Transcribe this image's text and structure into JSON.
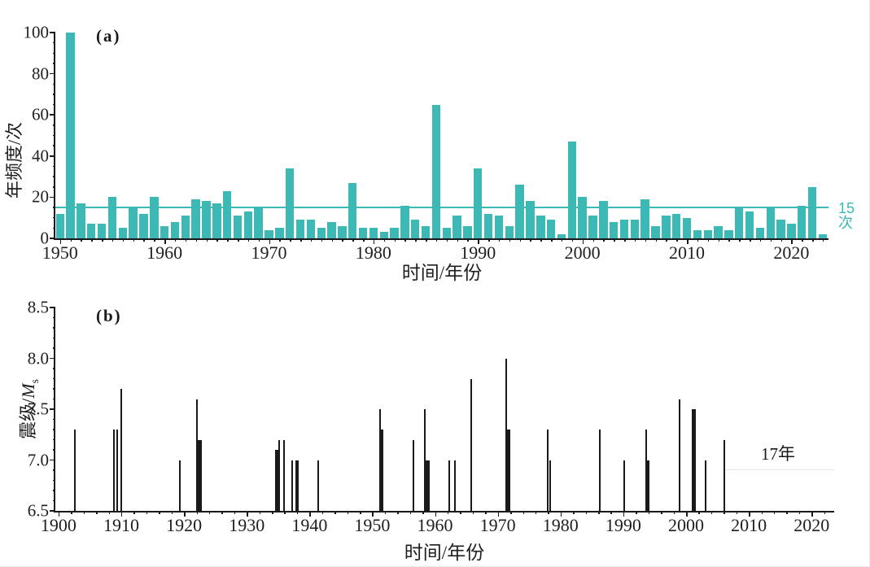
{
  "figure": {
    "background": "#ffffff",
    "border_color": "#e9e9e9",
    "axis_color": "#1a1a1a"
  },
  "chart_data": [
    {
      "type": "bar",
      "panel": "a",
      "title": "(a)",
      "xlabel": "时间/年份",
      "ylabel": "年频度/次",
      "ylim": [
        0,
        100
      ],
      "yticks": [
        0,
        20,
        40,
        60,
        80,
        100
      ],
      "ytick_labels": [
        "0",
        "20",
        "40",
        "60",
        "80",
        "100"
      ],
      "ytick_minor_step": 5,
      "xlim": [
        1949.55,
        2023.55
      ],
      "xticks": [
        1950,
        1960,
        1970,
        1980,
        1990,
        2000,
        2010,
        2020
      ],
      "xtick_labels": [
        "1950",
        "1960",
        "1970",
        "1980",
        "1990",
        "2000",
        "2010",
        "2020"
      ],
      "xtick_minor_step": 1,
      "grid": false,
      "legend": "none",
      "bar_color": "#3cb9b5",
      "threshold": {
        "value": 15,
        "label": "15次",
        "color": "#3cb9b5"
      },
      "year_start": 1950,
      "categories": [
        1950,
        1951,
        1952,
        1953,
        1954,
        1955,
        1956,
        1957,
        1958,
        1959,
        1960,
        1961,
        1962,
        1963,
        1964,
        1965,
        1966,
        1967,
        1968,
        1969,
        1970,
        1971,
        1972,
        1973,
        1974,
        1975,
        1976,
        1977,
        1978,
        1979,
        1980,
        1981,
        1982,
        1983,
        1984,
        1985,
        1986,
        1987,
        1988,
        1989,
        1990,
        1991,
        1992,
        1993,
        1994,
        1995,
        1996,
        1997,
        1998,
        1999,
        2000,
        2001,
        2002,
        2003,
        2004,
        2005,
        2006,
        2007,
        2008,
        2009,
        2010,
        2011,
        2012,
        2013,
        2014,
        2015,
        2016,
        2017,
        2018,
        2019,
        2020,
        2021,
        2022,
        2023
      ],
      "values": [
        12,
        100,
        17,
        7,
        7,
        20,
        5,
        15,
        12,
        20,
        6,
        8,
        11,
        19,
        18,
        17,
        23,
        11,
        13,
        15,
        4,
        5,
        34,
        9,
        9,
        5,
        8,
        6,
        27,
        5,
        5,
        3,
        5,
        16,
        9,
        6,
        65,
        5,
        11,
        6,
        34,
        12,
        11,
        6,
        26,
        18,
        11,
        9,
        2,
        47,
        20,
        11,
        18,
        8,
        9,
        9,
        19,
        6,
        11,
        12,
        10,
        4,
        4,
        6,
        4,
        15,
        13,
        5,
        15,
        9,
        7,
        16,
        25,
        2
      ]
    },
    {
      "type": "stem",
      "panel": "b",
      "title": "(b)",
      "xlabel": "时间/年份",
      "ylabel": "震级/Ms",
      "ylabel_prefix": "震级/",
      "ylabel_symbol": "M",
      "ylabel_subscript": "s",
      "ylim": [
        6.5,
        8.5
      ],
      "yticks": [
        6.5,
        7.0,
        7.5,
        8.0,
        8.5
      ],
      "ytick_labels": [
        "6.5",
        "7.0",
        "7.5",
        "8.0",
        "8.5"
      ],
      "ytick_minor_step": 0.1,
      "xlim": [
        1899.5,
        2023.6
      ],
      "xticks": [
        1900,
        1910,
        1920,
        1930,
        1940,
        1950,
        1960,
        1970,
        1980,
        1990,
        2000,
        2010,
        2020
      ],
      "xtick_labels": [
        "1900",
        "1910",
        "1920",
        "1930",
        "1940",
        "1950",
        "1960",
        "1970",
        "1980",
        "1990",
        "2000",
        "2010",
        "2020"
      ],
      "xtick_minor_step": 2,
      "grid": false,
      "legend": "none",
      "stem_color": "#1a1a1a",
      "baseline": 6.5,
      "events": [
        {
          "year": 1902.6,
          "mag": 7.3
        },
        {
          "year": 1908.8,
          "mag": 7.3
        },
        {
          "year": 1909.4,
          "mag": 7.3
        },
        {
          "year": 1910.0,
          "mag": 7.7
        },
        {
          "year": 1919.4,
          "mag": 7.0
        },
        {
          "year": 1922.1,
          "mag": 7.6
        },
        {
          "year": 1922.5,
          "mag": 7.2,
          "bold": true
        },
        {
          "year": 1934.8,
          "mag": 7.1,
          "bold": true
        },
        {
          "year": 1935.2,
          "mag": 7.2
        },
        {
          "year": 1936.0,
          "mag": 7.2
        },
        {
          "year": 1937.2,
          "mag": 7.0
        },
        {
          "year": 1938.0,
          "mag": 7.0,
          "bold": true
        },
        {
          "year": 1941.4,
          "mag": 7.0
        },
        {
          "year": 1951.2,
          "mag": 7.5
        },
        {
          "year": 1951.5,
          "mag": 7.3,
          "bold": true
        },
        {
          "year": 1956.5,
          "mag": 7.2
        },
        {
          "year": 1958.4,
          "mag": 7.5
        },
        {
          "year": 1958.8,
          "mag": 7.0,
          "bold": true
        },
        {
          "year": 1962.3,
          "mag": 7.0
        },
        {
          "year": 1963.2,
          "mag": 7.0
        },
        {
          "year": 1965.7,
          "mag": 7.8
        },
        {
          "year": 1971.3,
          "mag": 8.0
        },
        {
          "year": 1971.7,
          "mag": 7.3,
          "bold": true
        },
        {
          "year": 1977.9,
          "mag": 7.3
        },
        {
          "year": 1978.3,
          "mag": 7.0
        },
        {
          "year": 1986.2,
          "mag": 7.3
        },
        {
          "year": 1990.2,
          "mag": 7.0
        },
        {
          "year": 1993.6,
          "mag": 7.3
        },
        {
          "year": 1993.9,
          "mag": 7.0,
          "bold": true
        },
        {
          "year": 1998.9,
          "mag": 7.6
        },
        {
          "year": 2001.2,
          "mag": 7.5,
          "bold": true
        },
        {
          "year": 2003.1,
          "mag": 7.0
        },
        {
          "year": 2006.1,
          "mag": 7.2
        }
      ],
      "annotation": {
        "text": "17年",
        "line_from": 2006.3,
        "line_to": 2023.6,
        "line_y": 6.91,
        "text_x": 2014.6,
        "text_y": 7.12
      }
    }
  ]
}
